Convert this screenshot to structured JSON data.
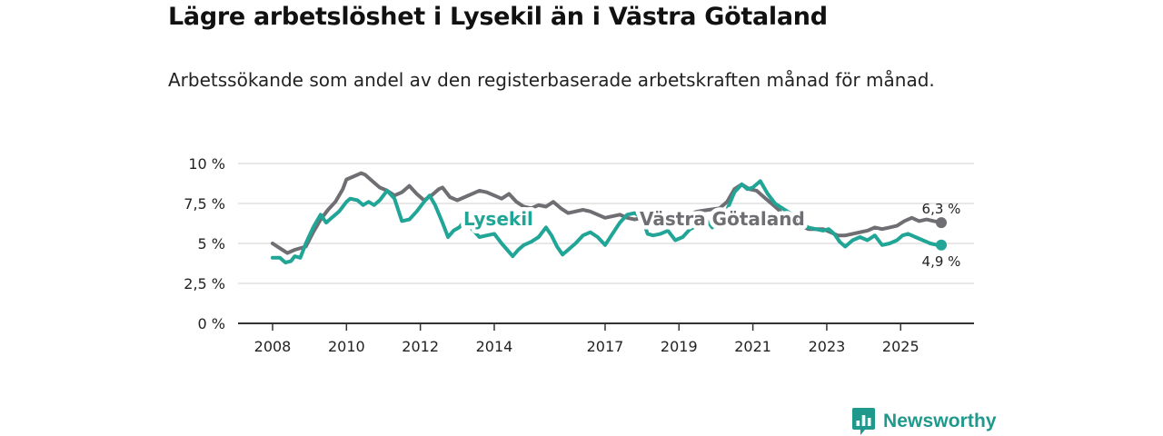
{
  "title": "Lägre arbetslöshet i Lysekil än i Västra Götaland",
  "subtitle": "Arbetssökande som andel av den registerbaserade arbetskraften månad för månad.",
  "brand": {
    "name": "Newsworthy",
    "icon": "newsworthy-logo-icon",
    "color": "#20998d"
  },
  "colors": {
    "lysekil": "#20a596",
    "vastra": "#6f6e73",
    "grid": "#d9d9d9",
    "axis": "#333333"
  },
  "chart_data": {
    "type": "line",
    "title": "Lägre arbetslöshet i Lysekil än i Västra Götaland",
    "xlabel": "",
    "ylabel": "",
    "xlim": [
      2008,
      2026.3
    ],
    "ylim": [
      0,
      10
    ],
    "y_ticks": [
      0,
      2.5,
      5,
      7.5,
      10
    ],
    "y_tick_labels": [
      "0 %",
      "2,5 %",
      "5 %",
      "7,5 %",
      "10 %"
    ],
    "x_ticks": [
      2008,
      2010,
      2012,
      2014,
      2017,
      2019,
      2021,
      2023,
      2025
    ],
    "x_tick_labels": [
      "2008",
      "2010",
      "2012",
      "2014",
      "2017",
      "2019",
      "2021",
      "2023",
      "2025"
    ],
    "grid": true,
    "legend": "inline labels",
    "series": [
      {
        "name": "Västra Götaland",
        "end_label": "6,3 %",
        "points": [
          [
            2008.0,
            5.0
          ],
          [
            2008.2,
            4.7
          ],
          [
            2008.4,
            4.4
          ],
          [
            2008.6,
            4.6
          ],
          [
            2008.9,
            4.8
          ],
          [
            2009.1,
            5.7
          ],
          [
            2009.3,
            6.5
          ],
          [
            2009.5,
            7.1
          ],
          [
            2009.7,
            7.6
          ],
          [
            2009.9,
            8.4
          ],
          [
            2010.0,
            9.0
          ],
          [
            2010.2,
            9.2
          ],
          [
            2010.4,
            9.4
          ],
          [
            2010.5,
            9.3
          ],
          [
            2010.7,
            8.9
          ],
          [
            2010.9,
            8.5
          ],
          [
            2011.1,
            8.3
          ],
          [
            2011.3,
            8.0
          ],
          [
            2011.5,
            8.2
          ],
          [
            2011.7,
            8.6
          ],
          [
            2011.9,
            8.1
          ],
          [
            2012.1,
            7.7
          ],
          [
            2012.3,
            8.0
          ],
          [
            2012.5,
            8.4
          ],
          [
            2012.6,
            8.5
          ],
          [
            2012.8,
            7.9
          ],
          [
            2013.0,
            7.7
          ],
          [
            2013.2,
            7.9
          ],
          [
            2013.4,
            8.1
          ],
          [
            2013.6,
            8.3
          ],
          [
            2013.8,
            8.2
          ],
          [
            2014.0,
            8.0
          ],
          [
            2014.2,
            7.8
          ],
          [
            2014.4,
            8.1
          ],
          [
            2014.6,
            7.6
          ],
          [
            2014.8,
            7.3
          ],
          [
            2015.0,
            7.2
          ],
          [
            2015.2,
            7.4
          ],
          [
            2015.4,
            7.3
          ],
          [
            2015.6,
            7.6
          ],
          [
            2015.8,
            7.2
          ],
          [
            2016.0,
            6.9
          ],
          [
            2016.2,
            7.0
          ],
          [
            2016.4,
            7.1
          ],
          [
            2016.6,
            7.0
          ],
          [
            2016.8,
            6.8
          ],
          [
            2017.0,
            6.6
          ],
          [
            2017.2,
            6.7
          ],
          [
            2017.4,
            6.8
          ],
          [
            2017.6,
            6.6
          ],
          [
            2017.8,
            6.5
          ],
          [
            2018.0,
            6.6
          ],
          [
            2018.3,
            6.5
          ],
          [
            2018.6,
            6.5
          ],
          [
            2018.9,
            6.6
          ],
          [
            2019.2,
            6.8
          ],
          [
            2019.5,
            7.0
          ],
          [
            2019.8,
            7.1
          ],
          [
            2020.1,
            7.2
          ],
          [
            2020.3,
            7.6
          ],
          [
            2020.5,
            8.4
          ],
          [
            2020.7,
            8.7
          ],
          [
            2020.9,
            8.4
          ],
          [
            2021.1,
            8.3
          ],
          [
            2021.3,
            7.9
          ],
          [
            2021.5,
            7.5
          ],
          [
            2021.7,
            7.1
          ],
          [
            2021.9,
            6.6
          ],
          [
            2022.1,
            6.4
          ],
          [
            2022.3,
            6.1
          ],
          [
            2022.5,
            5.9
          ],
          [
            2022.7,
            5.9
          ],
          [
            2022.9,
            5.9
          ],
          [
            2023.1,
            5.7
          ],
          [
            2023.3,
            5.5
          ],
          [
            2023.5,
            5.5
          ],
          [
            2023.7,
            5.6
          ],
          [
            2023.9,
            5.7
          ],
          [
            2024.1,
            5.8
          ],
          [
            2024.3,
            6.0
          ],
          [
            2024.5,
            5.9
          ],
          [
            2024.7,
            6.0
          ],
          [
            2024.9,
            6.1
          ],
          [
            2025.1,
            6.4
          ],
          [
            2025.3,
            6.6
          ],
          [
            2025.5,
            6.4
          ],
          [
            2025.7,
            6.5
          ],
          [
            2025.9,
            6.4
          ],
          [
            2026.1,
            6.3
          ]
        ]
      },
      {
        "name": "Lysekil",
        "end_label": "4,9 %",
        "points": [
          [
            2008.0,
            4.1
          ],
          [
            2008.2,
            4.1
          ],
          [
            2008.35,
            3.8
          ],
          [
            2008.5,
            3.9
          ],
          [
            2008.6,
            4.2
          ],
          [
            2008.75,
            4.1
          ],
          [
            2008.9,
            5.0
          ],
          [
            2009.1,
            6.0
          ],
          [
            2009.3,
            6.8
          ],
          [
            2009.45,
            6.3
          ],
          [
            2009.6,
            6.6
          ],
          [
            2009.8,
            7.0
          ],
          [
            2010.0,
            7.6
          ],
          [
            2010.1,
            7.8
          ],
          [
            2010.3,
            7.7
          ],
          [
            2010.45,
            7.4
          ],
          [
            2010.6,
            7.6
          ],
          [
            2010.75,
            7.4
          ],
          [
            2010.9,
            7.7
          ],
          [
            2011.1,
            8.3
          ],
          [
            2011.3,
            7.8
          ],
          [
            2011.5,
            6.4
          ],
          [
            2011.7,
            6.5
          ],
          [
            2011.9,
            7.0
          ],
          [
            2012.1,
            7.6
          ],
          [
            2012.25,
            8.0
          ],
          [
            2012.4,
            7.4
          ],
          [
            2012.6,
            6.3
          ],
          [
            2012.75,
            5.4
          ],
          [
            2012.9,
            5.8
          ],
          [
            2013.05,
            6.0
          ],
          [
            2013.2,
            6.4
          ],
          [
            2013.4,
            5.9
          ],
          [
            2013.6,
            5.4
          ],
          [
            2013.8,
            5.5
          ],
          [
            2014.0,
            5.6
          ],
          [
            2014.2,
            5.0
          ],
          [
            2014.35,
            4.6
          ],
          [
            2014.5,
            4.2
          ],
          [
            2014.65,
            4.6
          ],
          [
            2014.8,
            4.9
          ],
          [
            2015.0,
            5.1
          ],
          [
            2015.2,
            5.4
          ],
          [
            2015.4,
            6.0
          ],
          [
            2015.55,
            5.5
          ],
          [
            2015.7,
            4.8
          ],
          [
            2015.85,
            4.3
          ],
          [
            2016.0,
            4.6
          ],
          [
            2016.2,
            5.0
          ],
          [
            2016.4,
            5.5
          ],
          [
            2016.6,
            5.7
          ],
          [
            2016.8,
            5.4
          ],
          [
            2017.0,
            4.9
          ],
          [
            2017.2,
            5.6
          ],
          [
            2017.4,
            6.3
          ],
          [
            2017.6,
            6.8
          ],
          [
            2017.8,
            6.9
          ],
          [
            2018.0,
            6.6
          ],
          [
            2018.15,
            5.6
          ],
          [
            2018.3,
            5.5
          ],
          [
            2018.5,
            5.6
          ],
          [
            2018.7,
            5.8
          ],
          [
            2018.9,
            5.2
          ],
          [
            2019.1,
            5.4
          ],
          [
            2019.3,
            5.9
          ],
          [
            2019.5,
            6.1
          ],
          [
            2019.7,
            6.6
          ],
          [
            2019.9,
            6.0
          ],
          [
            2020.1,
            6.5
          ],
          [
            2020.3,
            7.1
          ],
          [
            2020.5,
            8.2
          ],
          [
            2020.7,
            8.7
          ],
          [
            2020.85,
            8.4
          ],
          [
            2021.0,
            8.5
          ],
          [
            2021.2,
            8.9
          ],
          [
            2021.4,
            8.1
          ],
          [
            2021.6,
            7.5
          ],
          [
            2021.8,
            7.2
          ],
          [
            2022.0,
            6.9
          ],
          [
            2022.15,
            6.5
          ],
          [
            2022.3,
            6.3
          ],
          [
            2022.5,
            6.0
          ],
          [
            2022.7,
            5.9
          ],
          [
            2022.9,
            5.8
          ],
          [
            2023.05,
            5.9
          ],
          [
            2023.2,
            5.6
          ],
          [
            2023.35,
            5.1
          ],
          [
            2023.5,
            4.8
          ],
          [
            2023.7,
            5.2
          ],
          [
            2023.9,
            5.4
          ],
          [
            2024.1,
            5.2
          ],
          [
            2024.3,
            5.5
          ],
          [
            2024.5,
            4.9
          ],
          [
            2024.7,
            5.0
          ],
          [
            2024.9,
            5.2
          ],
          [
            2025.05,
            5.5
          ],
          [
            2025.2,
            5.6
          ],
          [
            2025.4,
            5.4
          ],
          [
            2025.6,
            5.2
          ],
          [
            2025.8,
            5.0
          ],
          [
            2026.0,
            4.9
          ],
          [
            2026.1,
            4.9
          ]
        ]
      }
    ],
    "inline_labels": {
      "lysekil": "Lysekil",
      "vastra": "Västra Götaland"
    }
  }
}
